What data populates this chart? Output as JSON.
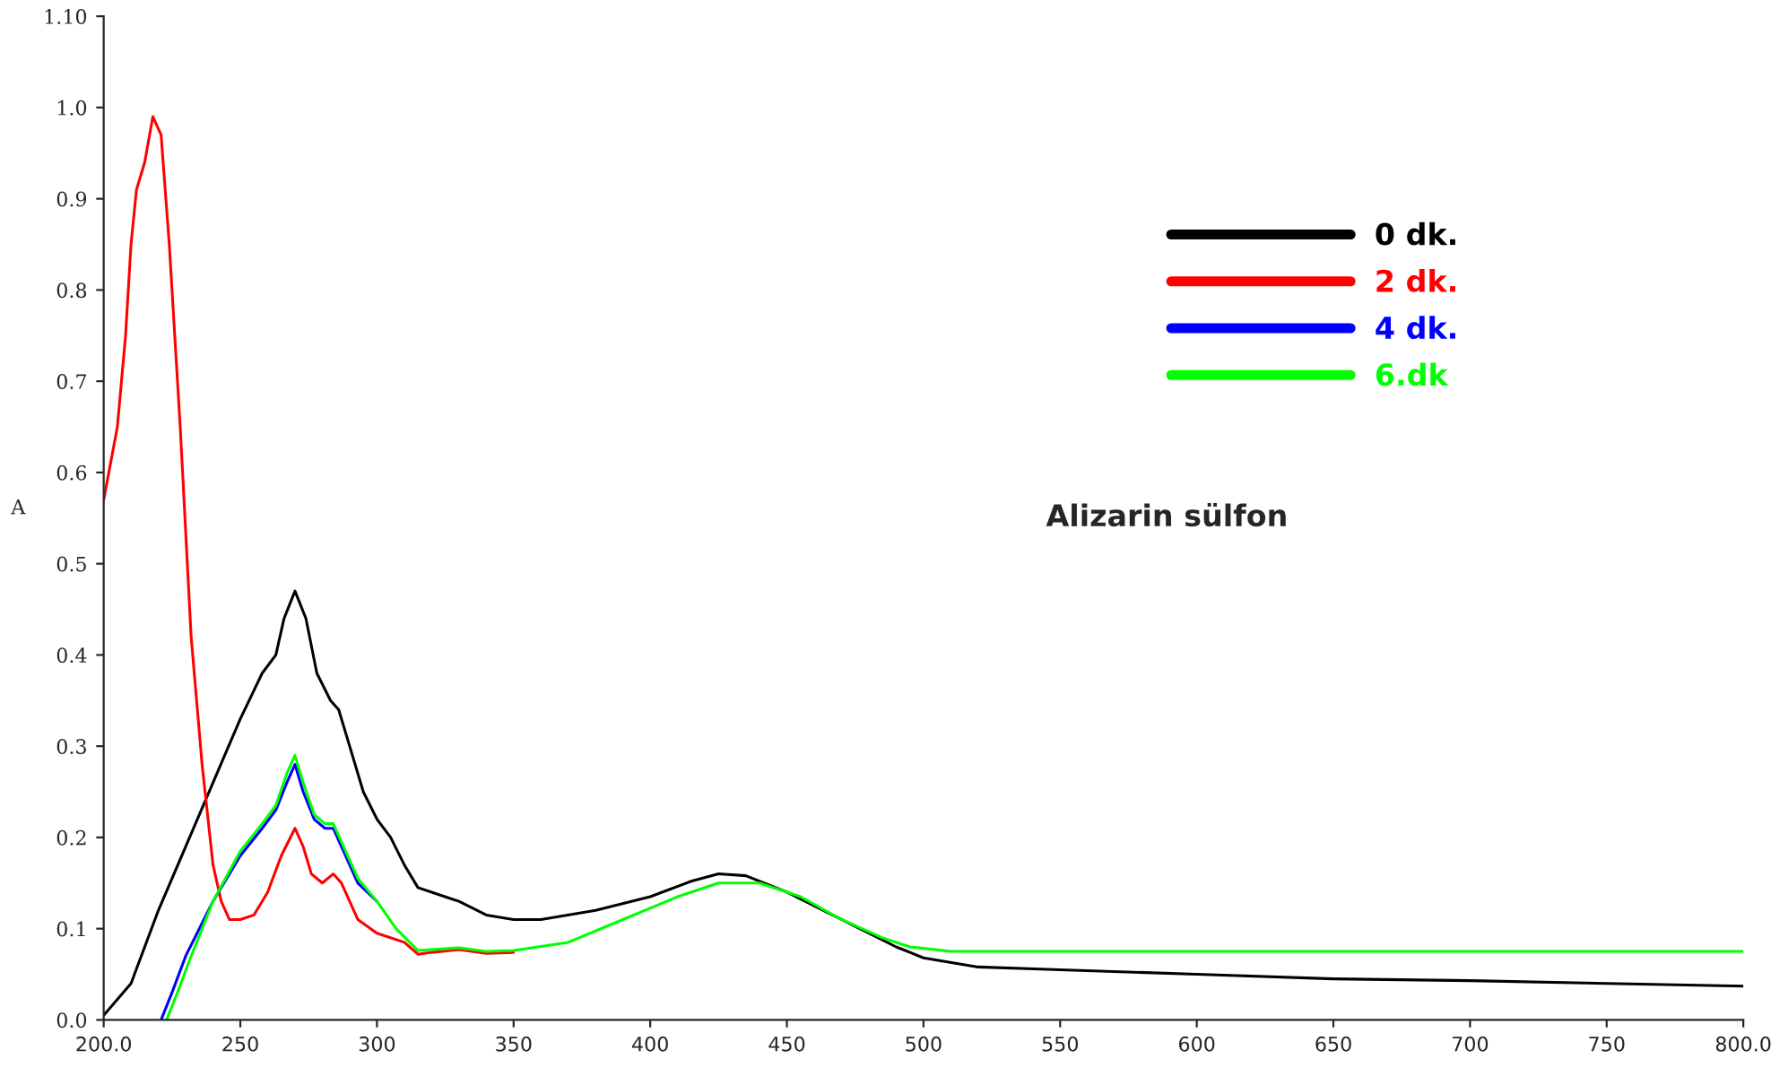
{
  "chart_data": {
    "type": "line",
    "ylabel": "A",
    "annotations": [
      "Alizarin sülfon"
    ],
    "legend": "top right",
    "grid": false,
    "marker": "none",
    "line_style": "solid",
    "xlim": [
      200,
      800
    ],
    "xticks": [
      {
        "value": 200,
        "label": "200.0"
      },
      250,
      300,
      350,
      400,
      450,
      500,
      550,
      600,
      650,
      700,
      750,
      {
        "value": 800,
        "label": "800.0"
      }
    ],
    "ylim": [
      0,
      1.1
    ],
    "yticks": [
      {
        "value": 0,
        "label": "0.0"
      },
      0.1,
      0.2,
      0.3,
      0.4,
      0.5,
      0.6,
      0.7,
      0.8,
      0.9,
      {
        "value": 1.0,
        "label": "1.0"
      },
      {
        "value": 1.1,
        "label": "1.10"
      }
    ],
    "series": [
      {
        "name": "0 dk.",
        "color": "#000000",
        "x": [
          200,
          210,
          220,
          230,
          240,
          250,
          258,
          263,
          266,
          270,
          274,
          278,
          283,
          286,
          290,
          295,
          300,
          305,
          310,
          315,
          320,
          330,
          340,
          350,
          360,
          380,
          400,
          415,
          425,
          435,
          450,
          470,
          490,
          500,
          520,
          550,
          600,
          650,
          700,
          750,
          800
        ],
        "values": [
          0.005,
          0.04,
          0.12,
          0.19,
          0.26,
          0.33,
          0.38,
          0.4,
          0.44,
          0.47,
          0.44,
          0.38,
          0.35,
          0.34,
          0.3,
          0.25,
          0.22,
          0.2,
          0.17,
          0.145,
          0.14,
          0.13,
          0.115,
          0.11,
          0.11,
          0.12,
          0.135,
          0.152,
          0.16,
          0.158,
          0.14,
          0.11,
          0.08,
          0.068,
          0.058,
          0.055,
          0.05,
          0.045,
          0.043,
          0.04,
          0.037
        ]
      },
      {
        "name": "2 dk.",
        "color": "#ff0000",
        "x": [
          200,
          205,
          208,
          210,
          212,
          215,
          218,
          221,
          224,
          228,
          232,
          236,
          240,
          243,
          246,
          250,
          255,
          260,
          265,
          270,
          273,
          276,
          280,
          284,
          287,
          290,
          293,
          300,
          310,
          315,
          320,
          330,
          340,
          350
        ],
        "values": [
          0.57,
          0.65,
          0.75,
          0.85,
          0.91,
          0.94,
          0.99,
          0.97,
          0.85,
          0.65,
          0.42,
          0.28,
          0.17,
          0.13,
          0.11,
          0.11,
          0.115,
          0.14,
          0.18,
          0.21,
          0.19,
          0.16,
          0.15,
          0.16,
          0.15,
          0.13,
          0.11,
          0.095,
          0.085,
          0.072,
          0.074,
          0.077,
          0.073,
          0.074
        ]
      },
      {
        "name": "4 dk.",
        "color": "#0000ff",
        "x": [
          221,
          225,
          230,
          240,
          250,
          258,
          263,
          267,
          270,
          273,
          277,
          281,
          284,
          287,
          293,
          300
        ],
        "values": [
          0.0,
          0.03,
          0.07,
          0.13,
          0.18,
          0.21,
          0.23,
          0.26,
          0.28,
          0.25,
          0.22,
          0.21,
          0.21,
          0.19,
          0.15,
          0.13
        ]
      },
      {
        "name": "6.dk",
        "color": "#00ff00",
        "x": [
          223,
          227,
          232,
          240,
          250,
          258,
          263,
          267,
          270,
          273,
          277,
          281,
          284,
          287,
          293,
          300,
          307,
          315,
          320,
          330,
          340,
          350,
          370,
          390,
          410,
          425,
          440,
          455,
          470,
          485,
          495,
          510,
          800
        ],
        "values": [
          0.0,
          0.03,
          0.07,
          0.13,
          0.185,
          0.215,
          0.235,
          0.27,
          0.29,
          0.26,
          0.225,
          0.215,
          0.215,
          0.195,
          0.155,
          0.13,
          0.1,
          0.076,
          0.077,
          0.079,
          0.075,
          0.076,
          0.085,
          0.11,
          0.135,
          0.15,
          0.15,
          0.135,
          0.11,
          0.09,
          0.08,
          0.075,
          0.075
        ]
      }
    ]
  }
}
